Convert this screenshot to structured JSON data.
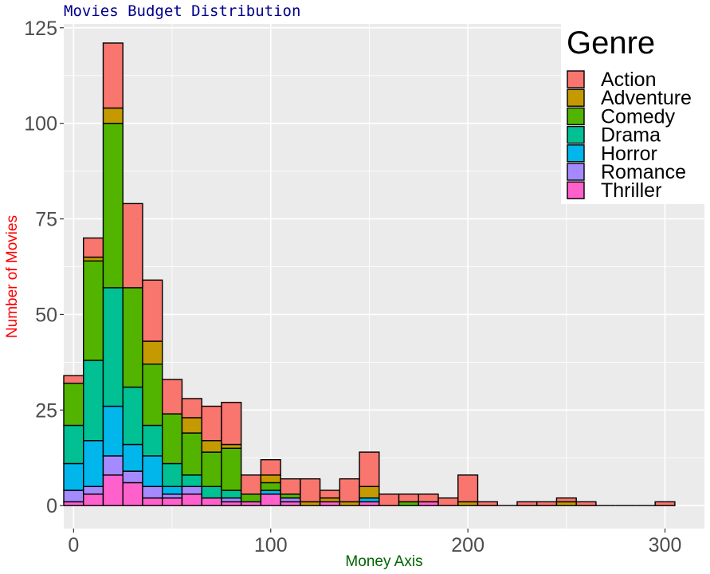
{
  "chart_data": {
    "type": "bar",
    "subtype": "stacked-histogram",
    "title": "Movies Budget Distribution",
    "xlabel": "Money Axis",
    "ylabel": "Number of Movies",
    "xlim": [
      -5,
      320
    ],
    "ylim": [
      -6,
      126
    ],
    "x_ticks": [
      0,
      100,
      200,
      300
    ],
    "y_ticks": [
      0,
      25,
      50,
      75,
      100,
      125
    ],
    "bin_width": 10,
    "bin_centers": [
      0,
      10,
      20,
      30,
      40,
      50,
      60,
      70,
      80,
      90,
      100,
      110,
      120,
      130,
      140,
      150,
      160,
      170,
      180,
      190,
      200,
      210,
      220,
      230,
      240,
      250,
      260,
      270,
      280,
      290,
      300
    ],
    "legend": {
      "title": "Genre",
      "position": "top-right"
    },
    "grid": true,
    "series": [
      {
        "name": "Thriller",
        "color": "#FF61CC",
        "values": [
          1,
          3,
          8,
          6,
          2,
          2,
          3,
          2,
          1,
          1,
          3,
          1,
          0,
          1,
          0,
          1,
          0,
          0,
          1,
          0,
          0,
          0,
          0,
          0,
          0,
          0,
          0,
          0,
          0,
          0,
          0
        ]
      },
      {
        "name": "Romance",
        "color": "#A58AFF",
        "values": [
          3,
          2,
          5,
          3,
          3,
          1,
          2,
          0,
          1,
          0,
          0,
          1,
          0,
          0,
          0,
          0,
          0,
          0,
          0,
          0,
          0,
          0,
          0,
          0,
          0,
          0,
          0,
          0,
          0,
          0,
          0
        ]
      },
      {
        "name": "Horror",
        "color": "#00B6EB",
        "values": [
          7,
          12,
          13,
          7,
          8,
          2,
          0,
          0,
          0,
          0,
          1,
          0,
          0,
          0,
          0,
          1,
          0,
          0,
          0,
          0,
          0,
          0,
          0,
          0,
          0,
          0,
          0,
          0,
          0,
          0,
          0
        ]
      },
      {
        "name": "Drama",
        "color": "#00C094",
        "values": [
          10,
          21,
          31,
          15,
          8,
          6,
          3,
          3,
          2,
          0,
          0,
          0,
          0,
          0,
          0,
          0,
          0,
          0,
          0,
          0,
          0,
          0,
          0,
          0,
          0,
          0,
          0,
          0,
          0,
          0,
          0
        ]
      },
      {
        "name": "Comedy",
        "color": "#53B400",
        "values": [
          11,
          26,
          43,
          26,
          16,
          13,
          11,
          9,
          11,
          2,
          2,
          1,
          0,
          0,
          0,
          0,
          0,
          1,
          0,
          0,
          0,
          0,
          0,
          0,
          0,
          0,
          0,
          0,
          0,
          0,
          0
        ]
      },
      {
        "name": "Adventure",
        "color": "#C49A00",
        "values": [
          0,
          1,
          4,
          0,
          6,
          0,
          4,
          3,
          1,
          0,
          2,
          0,
          1,
          1,
          1,
          3,
          0,
          0,
          0,
          0,
          1,
          0,
          0,
          0,
          0,
          1,
          0,
          0,
          0,
          0,
          0
        ]
      },
      {
        "name": "Action",
        "color": "#F8766D",
        "values": [
          2,
          5,
          17,
          22,
          16,
          9,
          5,
          9,
          11,
          5,
          4,
          4,
          6,
          2,
          6,
          9,
          3,
          2,
          2,
          2,
          7,
          1,
          0,
          1,
          1,
          1,
          1,
          0,
          0,
          0,
          1
        ]
      }
    ],
    "legend_order": [
      "Action",
      "Adventure",
      "Comedy",
      "Drama",
      "Horror",
      "Romance",
      "Thriller"
    ],
    "colors": {
      "panel": "#EBEBEB",
      "grid_major": "#FFFFFF",
      "bar_outline": "#000000"
    }
  }
}
